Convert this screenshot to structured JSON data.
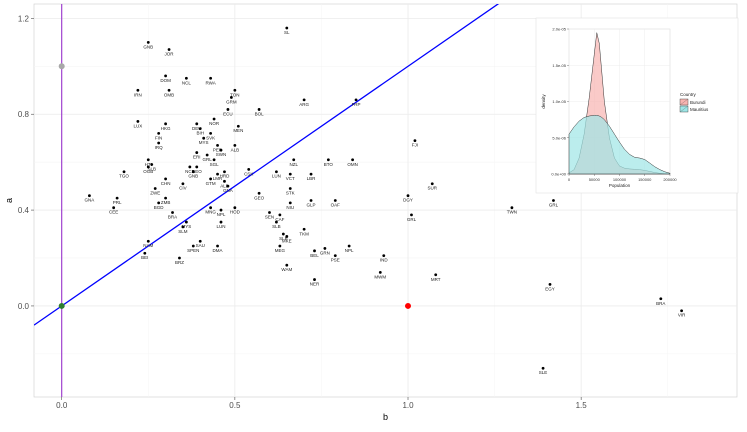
{
  "chart_data": [
    {
      "type": "scatter",
      "title": "",
      "xlabel": "b",
      "ylabel": "a",
      "xlim": [
        -0.08,
        1.95
      ],
      "ylim": [
        -0.38,
        1.26
      ],
      "xticks": [
        0.0,
        0.5,
        1.0,
        1.5
      ],
      "yticks": [
        0.0,
        0.4,
        0.8,
        1.2
      ],
      "xtick_labels": [
        "0.0",
        "0.5",
        "1.0",
        "1.5"
      ],
      "ytick_labels": [
        "0.0",
        "0.4",
        "0.8",
        "1.2"
      ],
      "grid": true,
      "background": "#ffffff",
      "grid_color": "#ebebeb",
      "point_color": "#000000",
      "line": {
        "intercept": 0.0,
        "slope": 1.0,
        "color": "#0000ff"
      },
      "vline": {
        "x": 0.0,
        "color": "#9933cc"
      },
      "special_points": [
        {
          "x": 0.0,
          "y": 1.0,
          "color": "#a8a8a8"
        },
        {
          "x": 0.0,
          "y": 0.0,
          "color": "#2e7d32"
        },
        {
          "x": 1.0,
          "y": 0.0,
          "color": "#ff0000"
        }
      ],
      "points": [
        {
          "label": "GNB",
          "x": 0.25,
          "y": 1.1
        },
        {
          "label": "JOR",
          "x": 0.31,
          "y": 1.07
        },
        {
          "label": "SL",
          "x": 0.65,
          "y": 1.16
        },
        {
          "label": "DOM",
          "x": 0.3,
          "y": 0.96
        },
        {
          "label": "NCL",
          "x": 0.36,
          "y": 0.95
        },
        {
          "label": "RWA",
          "x": 0.43,
          "y": 0.95
        },
        {
          "label": "IRN",
          "x": 0.22,
          "y": 0.9
        },
        {
          "label": "OMB",
          "x": 0.31,
          "y": 0.9
        },
        {
          "label": "TON",
          "x": 0.5,
          "y": 0.9
        },
        {
          "label": "GRM",
          "x": 0.49,
          "y": 0.87
        },
        {
          "label": "ARG",
          "x": 0.7,
          "y": 0.86
        },
        {
          "label": "FRP",
          "x": 0.85,
          "y": 0.86
        },
        {
          "label": "ECU",
          "x": 0.48,
          "y": 0.82
        },
        {
          "label": "BOL",
          "x": 0.57,
          "y": 0.82
        },
        {
          "label": "LUX",
          "x": 0.22,
          "y": 0.77
        },
        {
          "label": "HKG",
          "x": 0.3,
          "y": 0.76
        },
        {
          "label": "NOR",
          "x": 0.44,
          "y": 0.78
        },
        {
          "label": "DEU",
          "x": 0.39,
          "y": 0.76
        },
        {
          "label": "BIH",
          "x": 0.4,
          "y": 0.74
        },
        {
          "label": "MEN",
          "x": 0.51,
          "y": 0.75
        },
        {
          "label": "SVK",
          "x": 0.43,
          "y": 0.72
        },
        {
          "label": "MYS",
          "x": 0.41,
          "y": 0.7
        },
        {
          "label": "FIN",
          "x": 0.28,
          "y": 0.72
        },
        {
          "label": "IRQ",
          "x": 0.28,
          "y": 0.68
        },
        {
          "label": "PER",
          "x": 0.45,
          "y": 0.67
        },
        {
          "label": "ALB",
          "x": 0.5,
          "y": 0.67
        },
        {
          "label": "FJI",
          "x": 1.02,
          "y": 0.69
        },
        {
          "label": "SWN",
          "x": 0.46,
          "y": 0.65
        },
        {
          "label": "ERI",
          "x": 0.39,
          "y": 0.64
        },
        {
          "label": "GRL",
          "x": 0.42,
          "y": 0.63
        },
        {
          "label": "SGL",
          "x": 0.44,
          "y": 0.61
        },
        {
          "label": "HTI",
          "x": 0.25,
          "y": 0.61
        },
        {
          "label": "NZL",
          "x": 0.67,
          "y": 0.61
        },
        {
          "label": "BTO",
          "x": 0.77,
          "y": 0.61
        },
        {
          "label": "OMN",
          "x": 0.84,
          "y": 0.61
        },
        {
          "label": "SLB",
          "x": 0.26,
          "y": 0.59
        },
        {
          "label": "NCB",
          "x": 0.37,
          "y": 0.58
        },
        {
          "label": "GEO",
          "x": 0.39,
          "y": 0.58
        },
        {
          "label": "OGB",
          "x": 0.25,
          "y": 0.58
        },
        {
          "label": "TGO",
          "x": 0.18,
          "y": 0.56
        },
        {
          "label": "GNB",
          "x": 0.38,
          "y": 0.56
        },
        {
          "label": "HRD",
          "x": 0.47,
          "y": 0.56
        },
        {
          "label": "LMR",
          "x": 0.45,
          "y": 0.55
        },
        {
          "label": "CSK",
          "x": 0.54,
          "y": 0.57
        },
        {
          "label": "LUN",
          "x": 0.62,
          "y": 0.56
        },
        {
          "label": "GTM",
          "x": 0.43,
          "y": 0.53
        },
        {
          "label": "VCT",
          "x": 0.66,
          "y": 0.55
        },
        {
          "label": "LBR",
          "x": 0.72,
          "y": 0.55
        },
        {
          "label": "CHN",
          "x": 0.3,
          "y": 0.53
        },
        {
          "label": "ALB",
          "x": 0.47,
          "y": 0.52
        },
        {
          "label": "SUR",
          "x": 1.07,
          "y": 0.51
        },
        {
          "label": "CIV",
          "x": 0.35,
          "y": 0.51
        },
        {
          "label": "GNA",
          "x": 0.48,
          "y": 0.5
        },
        {
          "label": "STK",
          "x": 0.66,
          "y": 0.49
        },
        {
          "label": "ZWE",
          "x": 0.27,
          "y": 0.49
        },
        {
          "label": "GEO",
          "x": 0.57,
          "y": 0.47
        },
        {
          "label": "GNA",
          "x": 0.08,
          "y": 0.46
        },
        {
          "label": "DGY",
          "x": 1.0,
          "y": 0.46
        },
        {
          "label": "PRL",
          "x": 0.16,
          "y": 0.45
        },
        {
          "label": "ZMB",
          "x": 0.3,
          "y": 0.45
        },
        {
          "label": "GLP",
          "x": 0.72,
          "y": 0.44
        },
        {
          "label": "OAF",
          "x": 0.79,
          "y": 0.44
        },
        {
          "label": "GRL",
          "x": 1.42,
          "y": 0.44
        },
        {
          "label": "BGD",
          "x": 0.28,
          "y": 0.43
        },
        {
          "label": "NIU",
          "x": 0.66,
          "y": 0.43
        },
        {
          "label": "CEE",
          "x": 0.15,
          "y": 0.41
        },
        {
          "label": "TWN",
          "x": 1.3,
          "y": 0.41
        },
        {
          "label": "MNG",
          "x": 0.43,
          "y": 0.41
        },
        {
          "label": "HOD",
          "x": 0.5,
          "y": 0.41
        },
        {
          "label": "NPL",
          "x": 0.46,
          "y": 0.4
        },
        {
          "label": "BRA",
          "x": 0.32,
          "y": 0.39
        },
        {
          "label": "SEN",
          "x": 0.6,
          "y": 0.39
        },
        {
          "label": "CAF",
          "x": 0.63,
          "y": 0.38
        },
        {
          "label": "GRL",
          "x": 1.01,
          "y": 0.38
        },
        {
          "label": "LUN",
          "x": 0.46,
          "y": 0.35
        },
        {
          "label": "MYS",
          "x": 0.36,
          "y": 0.35
        },
        {
          "label": "SLB",
          "x": 0.62,
          "y": 0.35
        },
        {
          "label": "SLM",
          "x": 0.35,
          "y": 0.33
        },
        {
          "label": "TKM",
          "x": 0.7,
          "y": 0.32
        },
        {
          "label": "SLB",
          "x": 0.64,
          "y": 0.3
        },
        {
          "label": "MKE",
          "x": 0.65,
          "y": 0.29
        },
        {
          "label": "NAM",
          "x": 0.25,
          "y": 0.27
        },
        {
          "label": "SAU",
          "x": 0.4,
          "y": 0.27
        },
        {
          "label": "SPEN",
          "x": 0.38,
          "y": 0.25
        },
        {
          "label": "DMA",
          "x": 0.45,
          "y": 0.25
        },
        {
          "label": "MEG",
          "x": 0.63,
          "y": 0.25
        },
        {
          "label": "NPL",
          "x": 0.83,
          "y": 0.25
        },
        {
          "label": "GRN",
          "x": 0.76,
          "y": 0.24
        },
        {
          "label": "BEL",
          "x": 0.73,
          "y": 0.23
        },
        {
          "label": "PSE",
          "x": 0.79,
          "y": 0.21
        },
        {
          "label": "BEI",
          "x": 0.24,
          "y": 0.22
        },
        {
          "label": "IND",
          "x": 0.93,
          "y": 0.21
        },
        {
          "label": "BRZ",
          "x": 0.34,
          "y": 0.2
        },
        {
          "label": "WAM",
          "x": 0.65,
          "y": 0.17
        },
        {
          "label": "MWM",
          "x": 0.92,
          "y": 0.14
        },
        {
          "label": "MRT",
          "x": 1.08,
          "y": 0.13
        },
        {
          "label": "NER",
          "x": 0.73,
          "y": 0.11
        },
        {
          "label": "EGY",
          "x": 1.41,
          "y": 0.09
        },
        {
          "label": "BRA",
          "x": 1.73,
          "y": 0.03
        },
        {
          "label": "VIR",
          "x": 1.79,
          "y": -0.02
        },
        {
          "label": "SLE",
          "x": 1.39,
          "y": -0.26
        }
      ]
    },
    {
      "type": "area",
      "title": "",
      "xlabel": "Population",
      "ylabel": "density",
      "xlim": [
        0,
        200000
      ],
      "ylim": [
        0,
        2e-05
      ],
      "xticks": [
        0,
        50000,
        100000,
        150000,
        200000
      ],
      "yticks": [
        0,
        5e-06,
        1e-05,
        1.5e-05,
        2e-05
      ],
      "xtick_labels": [
        "0",
        "50000",
        "100000",
        "150000",
        "200000"
      ],
      "ytick_labels": [
        "0.0e+00",
        "5.0e-06",
        "1.0e-05",
        "1.5e-05",
        "2.0e-05"
      ],
      "grid": true,
      "legend": {
        "title": "Country",
        "position": "right"
      },
      "x": [
        0,
        10000,
        20000,
        30000,
        40000,
        50000,
        55000,
        60000,
        65000,
        70000,
        80000,
        90000,
        100000,
        110000,
        120000,
        130000,
        140000,
        150000,
        160000,
        170000,
        180000,
        190000,
        200000
      ],
      "series": [
        {
          "name": "Burundi",
          "fill": "#f8b4b0",
          "values": [
            1.5e-07,
            6e-07,
            2.2e-06,
            5.5e-06,
            1.05e-05,
            1.65e-05,
            1.95e-05,
            1.8e-05,
            1.4e-05,
            1e-05,
            5e-06,
            2.2e-06,
            1.1e-06,
            8e-07,
            7e-07,
            6.5e-07,
            6e-07,
            5e-07,
            3.5e-07,
            2e-07,
            1e-07,
            4e-08,
            1e-08
          ]
        },
        {
          "name": "Mauritius",
          "fill": "#9ee6e6",
          "values": [
            5.5e-06,
            6.5e-06,
            7.3e-06,
            7.8e-06,
            8e-06,
            8.1e-06,
            8.1e-06,
            8e-06,
            7.8e-06,
            7.5e-06,
            6.6e-06,
            5.5e-06,
            4.4e-06,
            3.4e-06,
            2.7e-06,
            2.3e-06,
            2.2e-06,
            2e-06,
            1.5e-06,
            1e-06,
            6e-07,
            3e-07,
            1e-07
          ]
        }
      ]
    }
  ]
}
